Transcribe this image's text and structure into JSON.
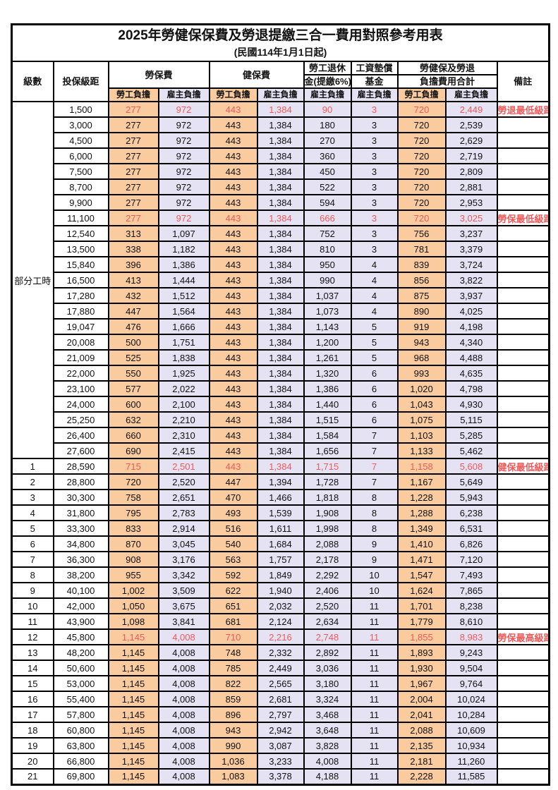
{
  "title": "2025年勞健保保費及勞退提繳三合一費用對照參考用表",
  "subtitle": "(民國114年1月1日起)",
  "colors": {
    "employee_bg": "#F9CB9F",
    "employer_bg": "#E4E2F3",
    "red_text": "#EE5A5A",
    "border": "#000000"
  },
  "header": {
    "level": "級數",
    "bracket": "投保級距",
    "labor_ins": "勞保費",
    "health_ins": "健保費",
    "pension_line1": "勞工退休",
    "pension_line2": "金(提繳6%)",
    "wage_fund_line1": "工資墊償",
    "wage_fund_line2": "基金",
    "total_line1": "勞健保及勞退",
    "total_line2": "負擔費用合計",
    "remark": "備註",
    "employee": "勞工負擔",
    "employer": "雇主負擔"
  },
  "part_time_label": "部分工時",
  "part_time_rowspan": 23,
  "rows": [
    {
      "level": "",
      "bracket": "1,500",
      "values": [
        "277",
        "972",
        "443",
        "1,384",
        "90",
        "3",
        "720",
        "2,449"
      ],
      "remark": "勞退最低級距",
      "red": true
    },
    {
      "level": "",
      "bracket": "3,000",
      "values": [
        "277",
        "972",
        "443",
        "1,384",
        "180",
        "3",
        "720",
        "2,539"
      ],
      "remark": "",
      "red": false
    },
    {
      "level": "",
      "bracket": "4,500",
      "values": [
        "277",
        "972",
        "443",
        "1,384",
        "270",
        "3",
        "720",
        "2,629"
      ],
      "remark": "",
      "red": false
    },
    {
      "level": "",
      "bracket": "6,000",
      "values": [
        "277",
        "972",
        "443",
        "1,384",
        "360",
        "3",
        "720",
        "2,719"
      ],
      "remark": "",
      "red": false
    },
    {
      "level": "",
      "bracket": "7,500",
      "values": [
        "277",
        "972",
        "443",
        "1,384",
        "450",
        "3",
        "720",
        "2,809"
      ],
      "remark": "",
      "red": false
    },
    {
      "level": "",
      "bracket": "8,700",
      "values": [
        "277",
        "972",
        "443",
        "1,384",
        "522",
        "3",
        "720",
        "2,881"
      ],
      "remark": "",
      "red": false
    },
    {
      "level": "",
      "bracket": "9,900",
      "values": [
        "277",
        "972",
        "443",
        "1,384",
        "594",
        "3",
        "720",
        "2,953"
      ],
      "remark": "",
      "red": false
    },
    {
      "level": "",
      "bracket": "11,100",
      "values": [
        "277",
        "972",
        "443",
        "1,384",
        "666",
        "3",
        "720",
        "3,025"
      ],
      "remark": "勞保最低級距",
      "red": true
    },
    {
      "level": "",
      "bracket": "12,540",
      "values": [
        "313",
        "1,097",
        "443",
        "1,384",
        "752",
        "3",
        "756",
        "3,237"
      ],
      "remark": "",
      "red": false
    },
    {
      "level": "",
      "bracket": "13,500",
      "values": [
        "338",
        "1,182",
        "443",
        "1,384",
        "810",
        "3",
        "781",
        "3,379"
      ],
      "remark": "",
      "red": false
    },
    {
      "level": "",
      "bracket": "15,840",
      "values": [
        "396",
        "1,386",
        "443",
        "1,384",
        "950",
        "4",
        "839",
        "3,724"
      ],
      "remark": "",
      "red": false
    },
    {
      "level": "",
      "bracket": "16,500",
      "values": [
        "413",
        "1,444",
        "443",
        "1,384",
        "990",
        "4",
        "856",
        "3,822"
      ],
      "remark": "",
      "red": false
    },
    {
      "level": "",
      "bracket": "17,280",
      "values": [
        "432",
        "1,512",
        "443",
        "1,384",
        "1,037",
        "4",
        "875",
        "3,937"
      ],
      "remark": "",
      "red": false
    },
    {
      "level": "",
      "bracket": "17,880",
      "values": [
        "447",
        "1,564",
        "443",
        "1,384",
        "1,073",
        "4",
        "890",
        "4,025"
      ],
      "remark": "",
      "red": false
    },
    {
      "level": "",
      "bracket": "19,047",
      "values": [
        "476",
        "1,666",
        "443",
        "1,384",
        "1,143",
        "5",
        "919",
        "4,198"
      ],
      "remark": "",
      "red": false
    },
    {
      "level": "",
      "bracket": "20,008",
      "values": [
        "500",
        "1,751",
        "443",
        "1,384",
        "1,200",
        "5",
        "943",
        "4,340"
      ],
      "remark": "",
      "red": false
    },
    {
      "level": "",
      "bracket": "21,009",
      "values": [
        "525",
        "1,838",
        "443",
        "1,384",
        "1,261",
        "5",
        "968",
        "4,488"
      ],
      "remark": "",
      "red": false
    },
    {
      "level": "",
      "bracket": "22,000",
      "values": [
        "550",
        "1,925",
        "443",
        "1,384",
        "1,320",
        "6",
        "993",
        "4,635"
      ],
      "remark": "",
      "red": false
    },
    {
      "level": "",
      "bracket": "23,100",
      "values": [
        "577",
        "2,022",
        "443",
        "1,384",
        "1,386",
        "6",
        "1,020",
        "4,798"
      ],
      "remark": "",
      "red": false
    },
    {
      "level": "",
      "bracket": "24,000",
      "values": [
        "600",
        "2,100",
        "443",
        "1,384",
        "1,440",
        "6",
        "1,043",
        "4,930"
      ],
      "remark": "",
      "red": false
    },
    {
      "level": "",
      "bracket": "25,250",
      "values": [
        "632",
        "2,210",
        "443",
        "1,384",
        "1,515",
        "6",
        "1,075",
        "5,115"
      ],
      "remark": "",
      "red": false
    },
    {
      "level": "",
      "bracket": "26,400",
      "values": [
        "660",
        "2,310",
        "443",
        "1,384",
        "1,584",
        "7",
        "1,103",
        "5,285"
      ],
      "remark": "",
      "red": false
    },
    {
      "level": "",
      "bracket": "27,600",
      "values": [
        "690",
        "2,415",
        "443",
        "1,384",
        "1,656",
        "7",
        "1,133",
        "5,462"
      ],
      "remark": "",
      "red": false
    },
    {
      "level": "1",
      "bracket": "28,590",
      "values": [
        "715",
        "2,501",
        "443",
        "1,384",
        "1,715",
        "7",
        "1,158",
        "5,608"
      ],
      "remark": "健保最低級距",
      "red": true
    },
    {
      "level": "2",
      "bracket": "28,800",
      "values": [
        "720",
        "2,520",
        "447",
        "1,394",
        "1,728",
        "7",
        "1,167",
        "5,649"
      ],
      "remark": "",
      "red": false
    },
    {
      "level": "3",
      "bracket": "30,300",
      "values": [
        "758",
        "2,651",
        "470",
        "1,466",
        "1,818",
        "8",
        "1,228",
        "5,943"
      ],
      "remark": "",
      "red": false
    },
    {
      "level": "4",
      "bracket": "31,800",
      "values": [
        "795",
        "2,783",
        "493",
        "1,539",
        "1,908",
        "8",
        "1,288",
        "6,238"
      ],
      "remark": "",
      "red": false
    },
    {
      "level": "5",
      "bracket": "33,300",
      "values": [
        "833",
        "2,914",
        "516",
        "1,611",
        "1,998",
        "8",
        "1,349",
        "6,531"
      ],
      "remark": "",
      "red": false
    },
    {
      "level": "6",
      "bracket": "34,800",
      "values": [
        "870",
        "3,045",
        "540",
        "1,684",
        "2,088",
        "9",
        "1,410",
        "6,826"
      ],
      "remark": "",
      "red": false
    },
    {
      "level": "7",
      "bracket": "36,300",
      "values": [
        "908",
        "3,176",
        "563",
        "1,757",
        "2,178",
        "9",
        "1,471",
        "7,120"
      ],
      "remark": "",
      "red": false
    },
    {
      "level": "8",
      "bracket": "38,200",
      "values": [
        "955",
        "3,342",
        "592",
        "1,849",
        "2,292",
        "10",
        "1,547",
        "7,493"
      ],
      "remark": "",
      "red": false
    },
    {
      "level": "9",
      "bracket": "40,100",
      "values": [
        "1,002",
        "3,509",
        "622",
        "1,940",
        "2,406",
        "10",
        "1,624",
        "7,865"
      ],
      "remark": "",
      "red": false
    },
    {
      "level": "10",
      "bracket": "42,000",
      "values": [
        "1,050",
        "3,675",
        "651",
        "2,032",
        "2,520",
        "11",
        "1,701",
        "8,238"
      ],
      "remark": "",
      "red": false
    },
    {
      "level": "11",
      "bracket": "43,900",
      "values": [
        "1,098",
        "3,841",
        "681",
        "2,124",
        "2,634",
        "11",
        "1,779",
        "8,610"
      ],
      "remark": "",
      "red": false
    },
    {
      "level": "12",
      "bracket": "45,800",
      "values": [
        "1,145",
        "4,008",
        "710",
        "2,216",
        "2,748",
        "11",
        "1,855",
        "8,983"
      ],
      "remark": "勞保最高級距",
      "red": true
    },
    {
      "level": "13",
      "bracket": "48,200",
      "values": [
        "1,145",
        "4,008",
        "748",
        "2,332",
        "2,892",
        "11",
        "1,893",
        "9,243"
      ],
      "remark": "",
      "red": false
    },
    {
      "level": "14",
      "bracket": "50,600",
      "values": [
        "1,145",
        "4,008",
        "785",
        "2,449",
        "3,036",
        "11",
        "1,930",
        "9,504"
      ],
      "remark": "",
      "red": false
    },
    {
      "level": "15",
      "bracket": "53,000",
      "values": [
        "1,145",
        "4,008",
        "822",
        "2,565",
        "3,180",
        "11",
        "1,967",
        "9,764"
      ],
      "remark": "",
      "red": false
    },
    {
      "level": "16",
      "bracket": "55,400",
      "values": [
        "1,145",
        "4,008",
        "859",
        "2,681",
        "3,324",
        "11",
        "2,004",
        "10,024"
      ],
      "remark": "",
      "red": false
    },
    {
      "level": "17",
      "bracket": "57,800",
      "values": [
        "1,145",
        "4,008",
        "896",
        "2,797",
        "3,468",
        "11",
        "2,041",
        "10,284"
      ],
      "remark": "",
      "red": false
    },
    {
      "level": "18",
      "bracket": "60,800",
      "values": [
        "1,145",
        "4,008",
        "943",
        "2,942",
        "3,648",
        "11",
        "2,088",
        "10,609"
      ],
      "remark": "",
      "red": false
    },
    {
      "level": "19",
      "bracket": "63,800",
      "values": [
        "1,145",
        "4,008",
        "990",
        "3,087",
        "3,828",
        "11",
        "2,135",
        "10,934"
      ],
      "remark": "",
      "red": false
    },
    {
      "level": "20",
      "bracket": "66,800",
      "values": [
        "1,145",
        "4,008",
        "1,036",
        "3,233",
        "4,008",
        "11",
        "2,181",
        "11,260"
      ],
      "remark": "",
      "red": false
    },
    {
      "level": "21",
      "bracket": "69,800",
      "values": [
        "1,145",
        "4,008",
        "1,083",
        "3,378",
        "4,188",
        "11",
        "2,228",
        "11,585"
      ],
      "remark": "",
      "red": false
    }
  ]
}
